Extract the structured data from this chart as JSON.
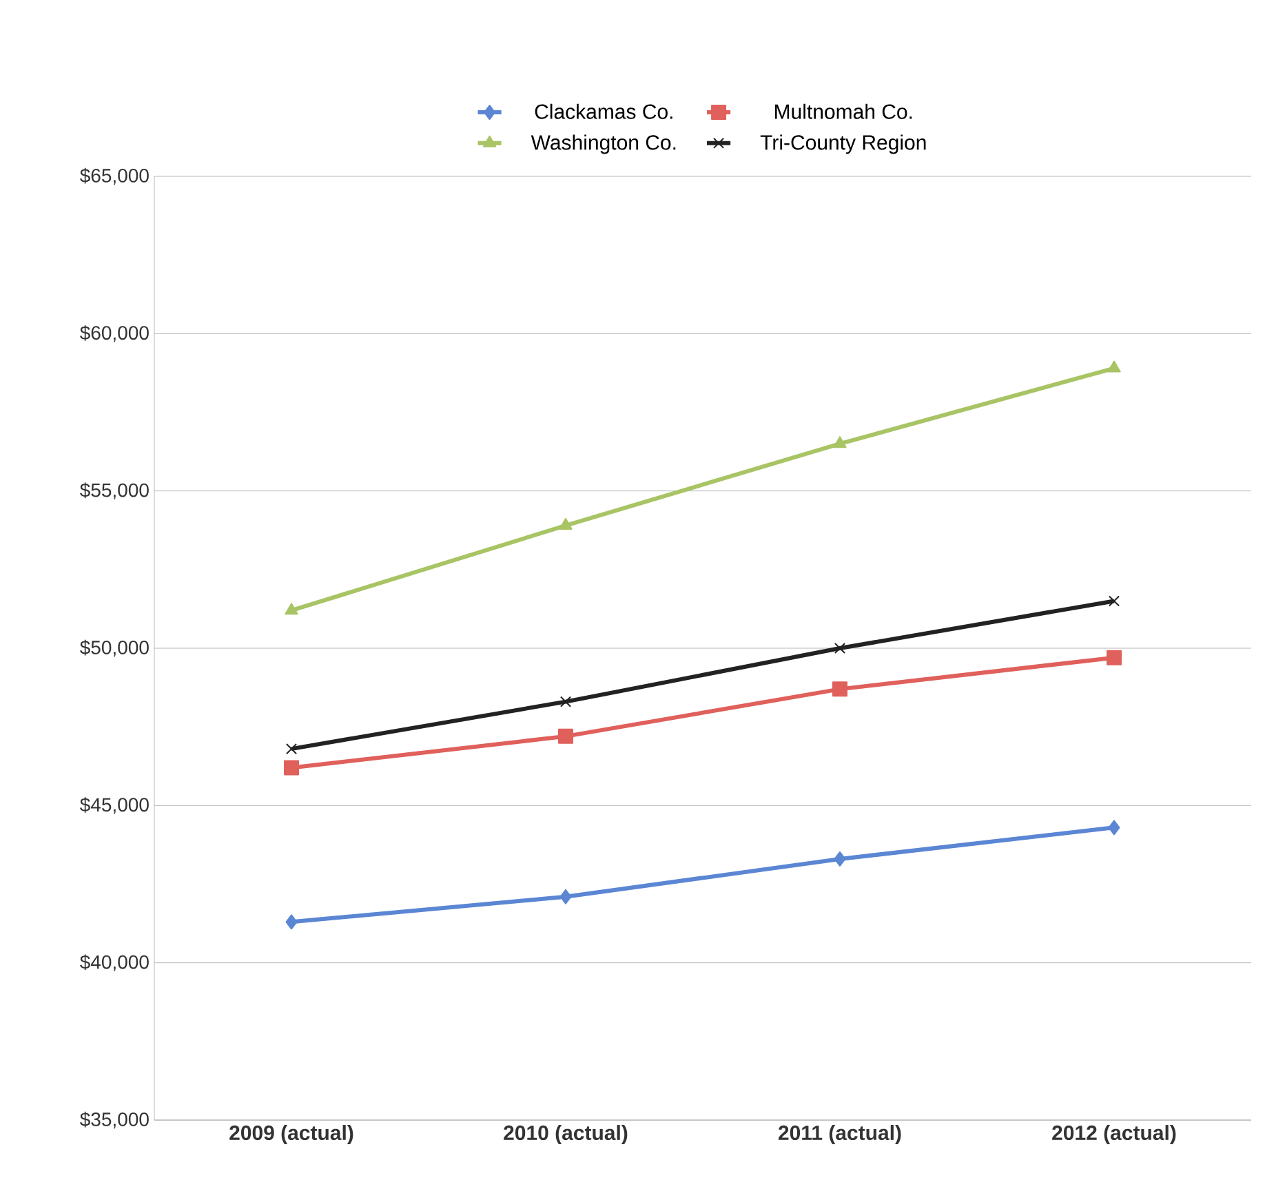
{
  "chart_data": {
    "type": "line",
    "categories": [
      "2009 (actual)",
      "2010 (actual)",
      "2011 (actual)",
      "2012 (actual)"
    ],
    "series": [
      {
        "name": "Clackamas Co.",
        "color": "#5b86d4",
        "marker": "diamond",
        "values": [
          41300,
          42100,
          43300,
          44300
        ]
      },
      {
        "name": "Multnomah Co.",
        "color": "#e0605c",
        "marker": "square",
        "values": [
          46200,
          47200,
          48700,
          49700
        ]
      },
      {
        "name": "Washington Co.",
        "color": "#a8c464",
        "marker": "triangle",
        "values": [
          51200,
          53900,
          56500,
          58900
        ]
      },
      {
        "name": "Tri-County Region",
        "color": "#222222",
        "marker": "cross",
        "values": [
          46800,
          48300,
          50000,
          51500
        ]
      }
    ],
    "ylim": [
      35000,
      65000
    ],
    "yticks": [
      {
        "value": 35000,
        "label": "$35,000"
      },
      {
        "value": 40000,
        "label": "$40,000"
      },
      {
        "value": 45000,
        "label": "$45,000"
      },
      {
        "value": 50000,
        "label": "$50,000"
      },
      {
        "value": 55000,
        "label": "$55,000"
      },
      {
        "value": 60000,
        "label": "$60,000"
      },
      {
        "value": 65000,
        "label": "$65,000"
      }
    ],
    "grid": "y",
    "legend": "top",
    "line_style": "solid"
  }
}
